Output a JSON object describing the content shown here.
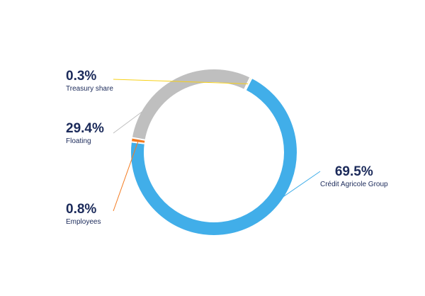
{
  "chart_data": {
    "type": "pie",
    "variant": "donut",
    "legend": "none",
    "slices": [
      {
        "name": "Crédit Agricole Group",
        "value": 69.5,
        "label": "69.5%",
        "color": "#41aee9"
      },
      {
        "name": "Employees",
        "value": 0.8,
        "label": "0.8%",
        "color": "#f47b20"
      },
      {
        "name": "Floating",
        "value": 29.4,
        "label": "29.4%",
        "color": "#bfbfbf"
      },
      {
        "name": "Treasury share",
        "value": 0.3,
        "label": "0.3%",
        "color": "#f7d117"
      }
    ]
  }
}
